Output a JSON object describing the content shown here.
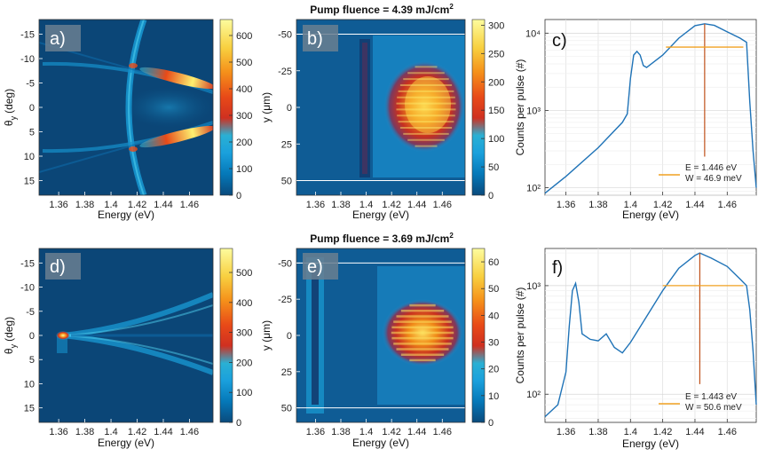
{
  "figure": {
    "energy_xlabel": "Energy (eV)",
    "theta_ylabel": "θ",
    "theta_ylabel_sub": "y",
    "theta_ylabel_unit": "(deg)",
    "y_ylabel": "y (μm)",
    "counts_ylabel": "Counts per pulse (#)"
  },
  "chart_data": [
    {
      "id": "a",
      "type": "heatmap",
      "panel_label": "a)",
      "xlabel": "Energy (eV)",
      "ylabel": "θy (deg)",
      "xlim": [
        1.345,
        1.478
      ],
      "ylim": [
        -18,
        18
      ],
      "xticks": [
        "1.36",
        "1.38",
        "1.4",
        "1.42",
        "1.44",
        "1.46"
      ],
      "yticks": [
        "-15",
        "-10",
        "-5",
        "0",
        "5",
        "10",
        "15"
      ],
      "colorbar": {
        "min": 0,
        "max": 660,
        "ticks": [
          "0",
          "100",
          "200",
          "300",
          "400",
          "500",
          "600"
        ]
      }
    },
    {
      "id": "b",
      "type": "heatmap",
      "panel_label": "b)",
      "title_prefix": "Pump fluence = 4.39 mJ/cm",
      "title_sup": "2",
      "xlabel": "Energy (eV)",
      "ylabel": "y (μm)",
      "xlim": [
        1.345,
        1.478
      ],
      "ylim": [
        -60,
        60
      ],
      "xticks": [
        "1.36",
        "1.38",
        "1.4",
        "1.42",
        "1.44",
        "1.46"
      ],
      "yticks": [
        "-50",
        "-25",
        "0",
        "25",
        "50"
      ],
      "hlines": [
        -50,
        50
      ],
      "colorbar": {
        "min": 0,
        "max": 310,
        "ticks": [
          "0",
          "50",
          "100",
          "150",
          "200",
          "250",
          "300"
        ]
      }
    },
    {
      "id": "c",
      "type": "line",
      "panel_label": "c)",
      "xlabel": "Energy (eV)",
      "ylabel": "Counts per pulse (#)",
      "xlim": [
        1.347,
        1.478
      ],
      "yscale": "log",
      "ylim": [
        80,
        15000
      ],
      "xticks": [
        "1.36",
        "1.38",
        "1.4",
        "1.42",
        "1.44",
        "1.46"
      ],
      "yticks": [
        "10²",
        "10³",
        "10⁴"
      ],
      "x": [
        1.347,
        1.36,
        1.38,
        1.395,
        1.398,
        1.4,
        1.402,
        1.404,
        1.406,
        1.408,
        1.41,
        1.42,
        1.43,
        1.44,
        1.446,
        1.452,
        1.46,
        1.468,
        1.472,
        1.474,
        1.476,
        1.478
      ],
      "y": [
        85,
        140,
        330,
        700,
        900,
        2600,
        5200,
        5800,
        5200,
        3800,
        3600,
        5200,
        8600,
        12500,
        13200,
        12600,
        10400,
        8600,
        7600,
        1300,
        300,
        100
      ],
      "peak_energy": 1.446,
      "fwhm_half": 6600,
      "fwhm_range": [
        1.422,
        1.47
      ],
      "legend": {
        "e_text": "E  = 1.446 eV",
        "w_text": "W = 46.9 meV"
      }
    },
    {
      "id": "d",
      "type": "heatmap",
      "panel_label": "d)",
      "xlabel": "Energy (eV)",
      "ylabel": "θy (deg)",
      "xlim": [
        1.345,
        1.478
      ],
      "ylim": [
        -18,
        18
      ],
      "xticks": [
        "1.36",
        "1.38",
        "1.4",
        "1.42",
        "1.44",
        "1.46"
      ],
      "yticks": [
        "-15",
        "-10",
        "-5",
        "0",
        "5",
        "10",
        "15"
      ],
      "colorbar": {
        "min": 0,
        "max": 580,
        "ticks": [
          "0",
          "100",
          "200",
          "300",
          "400",
          "500"
        ]
      }
    },
    {
      "id": "e",
      "type": "heatmap",
      "panel_label": "e)",
      "title_prefix": "Pump fluence = 3.69 mJ/cm",
      "title_sup": "2",
      "xlabel": "Energy (eV)",
      "ylabel": "y (μm)",
      "xlim": [
        1.345,
        1.478
      ],
      "ylim": [
        -60,
        60
      ],
      "xticks": [
        "1.36",
        "1.38",
        "1.4",
        "1.42",
        "1.44",
        "1.46"
      ],
      "yticks": [
        "-50",
        "-25",
        "0",
        "25",
        "50"
      ],
      "hlines": [
        -50,
        50
      ],
      "colorbar": {
        "min": 0,
        "max": 65,
        "ticks": [
          "0",
          "10",
          "20",
          "30",
          "40",
          "50",
          "60"
        ]
      }
    },
    {
      "id": "f",
      "type": "line",
      "panel_label": "f)",
      "xlabel": "Energy (eV)",
      "ylabel": "Counts per pulse (#)",
      "xlim": [
        1.347,
        1.478
      ],
      "yscale": "log",
      "ylim": [
        55,
        2200
      ],
      "xticks": [
        "1.36",
        "1.38",
        "1.4",
        "1.42",
        "1.44",
        "1.46"
      ],
      "yticks": [
        "10²",
        "10³"
      ],
      "x": [
        1.347,
        1.355,
        1.36,
        1.362,
        1.364,
        1.366,
        1.368,
        1.37,
        1.375,
        1.38,
        1.385,
        1.39,
        1.395,
        1.4,
        1.41,
        1.42,
        1.43,
        1.44,
        1.443,
        1.45,
        1.46,
        1.468,
        1.472,
        1.474,
        1.476,
        1.478
      ],
      "y": [
        62,
        80,
        160,
        420,
        900,
        1050,
        700,
        360,
        320,
        310,
        360,
        270,
        240,
        300,
        520,
        900,
        1450,
        1900,
        2000,
        1800,
        1500,
        1150,
        1000,
        600,
        250,
        80
      ],
      "peak_energy": 1.443,
      "fwhm_half": 1000,
      "fwhm_range": [
        1.42,
        1.47
      ],
      "legend": {
        "e_text": "E  = 1.443 eV",
        "w_text": "W = 50.6 meV"
      }
    }
  ]
}
